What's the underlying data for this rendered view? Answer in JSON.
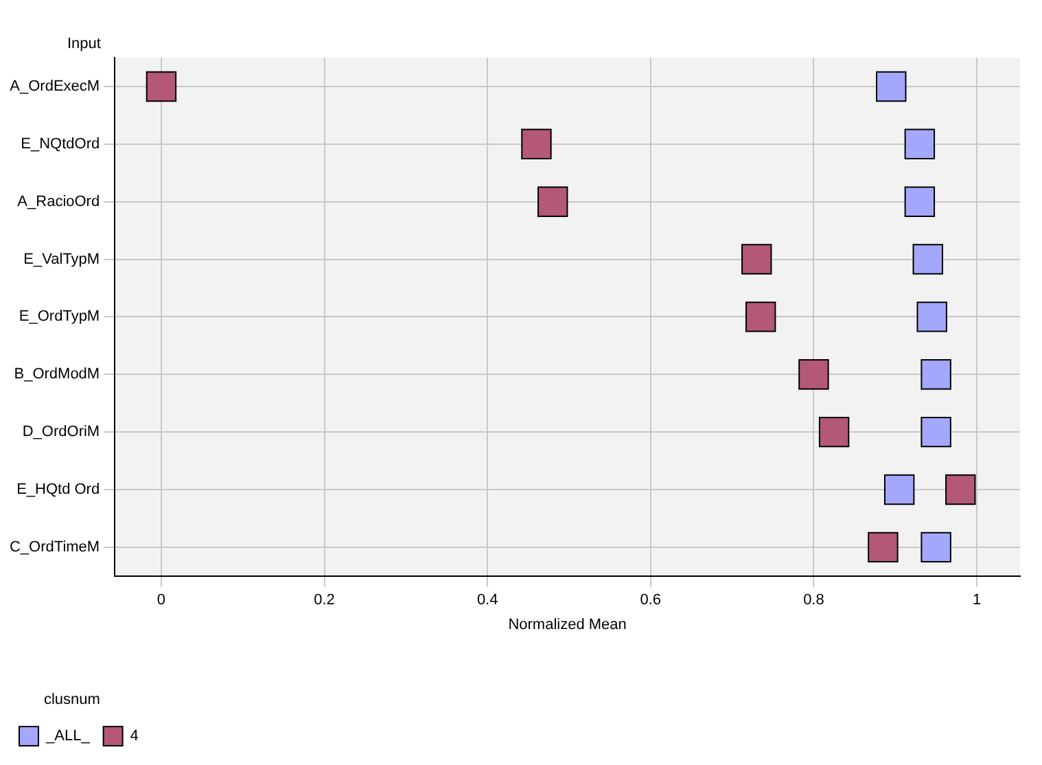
{
  "chart_data": {
    "type": "scatter",
    "ylabel": "Input",
    "xlabel": "Normalized Mean",
    "legend_title": "clusnum",
    "categories": [
      "A_OrdExecM",
      "E_NQtdOrd",
      "A_RacioOrd",
      "E_ValTypM",
      "E_OrdTypM",
      "B_OrdModM",
      "D_OrdOriM",
      "E_HQtd Ord",
      "C_OrdTimeM"
    ],
    "series": [
      {
        "name": "_ALL_",
        "color": "#a3a8fd",
        "values": [
          0.895,
          0.93,
          0.93,
          0.94,
          0.945,
          0.95,
          0.95,
          0.905,
          0.95
        ]
      },
      {
        "name": "4",
        "color": "#b35876",
        "values": [
          0.0,
          0.46,
          0.48,
          0.73,
          0.735,
          0.8,
          0.825,
          0.98,
          0.885
        ]
      }
    ],
    "xlim": [
      -0.057,
      1.053
    ],
    "xticks": [
      0,
      0.2,
      0.4,
      0.6,
      0.8,
      1
    ],
    "orientation": "horizontal",
    "grid": true,
    "legend": "bottom left",
    "marker": "square"
  }
}
